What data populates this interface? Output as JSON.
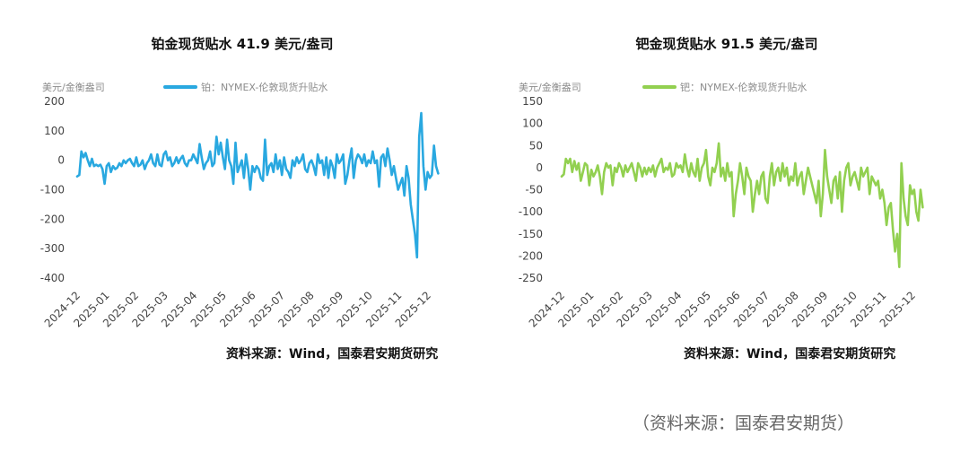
{
  "chart_data": [
    {
      "type": "line",
      "title": "铂金现货贴水 41.9 美元/盎司",
      "ylabel": "美元/金衡盎司",
      "ylim": [
        -400,
        200
      ],
      "yticks": [
        200,
        100,
        0,
        -100,
        -200,
        -300,
        -400
      ],
      "xticks": [
        "2024-12",
        "2025-01",
        "2025-02",
        "2025-03",
        "2025-04",
        "2025-05",
        "2025-06",
        "2025-07",
        "2025-08",
        "2025-09",
        "2025-10",
        "2025-11",
        "2025-12"
      ],
      "x_start": "2024-12",
      "x_end_index": 12.4,
      "color": "#29a8e0",
      "series": [
        {
          "name": "铂：NYMEX-伦敦现货升贴水",
          "values": [
            -55,
            -50,
            30,
            10,
            25,
            0,
            -20,
            5,
            -20,
            -15,
            -20,
            -15,
            -30,
            -80,
            -20,
            -10,
            -40,
            -20,
            -30,
            -25,
            -10,
            -20,
            0,
            -10,
            0,
            5,
            -10,
            -20,
            10,
            -20,
            -15,
            0,
            -30,
            -10,
            0,
            20,
            -10,
            -20,
            20,
            -15,
            -20,
            20,
            30,
            0,
            10,
            -20,
            -10,
            10,
            -10,
            5,
            15,
            -10,
            -20,
            0,
            0,
            20,
            5,
            -10,
            55,
            10,
            -30,
            -10,
            0,
            30,
            -20,
            -10,
            80,
            20,
            60,
            10,
            -30,
            70,
            0,
            -20,
            -80,
            60,
            -40,
            -20,
            0,
            -60,
            20,
            -30,
            -100,
            -20,
            -40,
            -20,
            -30,
            -60,
            -70,
            70,
            -50,
            -20,
            -10,
            -40,
            20,
            -30,
            0,
            -50,
            10,
            -30,
            -40,
            -60,
            0,
            -20,
            10,
            -10,
            0,
            20,
            -30,
            -40,
            -10,
            0,
            -20,
            -50,
            20,
            -10,
            0,
            -50,
            10,
            -60,
            0,
            -20,
            -60,
            20,
            -10,
            0,
            20,
            -80,
            -50,
            0,
            40,
            -60,
            0,
            20,
            10,
            -10,
            20,
            -20,
            0,
            -10,
            30,
            -10,
            0,
            -90,
            10,
            20,
            -20,
            40,
            0,
            -50,
            -20,
            -60,
            -100,
            -80,
            -60,
            -120,
            -20,
            -60,
            -150,
            -200,
            -250,
            -330,
            80,
            160,
            -20,
            -100,
            -40,
            -60,
            -50,
            50,
            -20,
            -45
          ]
        }
      ]
    },
    {
      "type": "line",
      "title": "钯金现货贴水 91.5 美元/盎司",
      "ylabel": "美元/金衡盎司",
      "ylim": [
        -250,
        150
      ],
      "yticks": [
        150,
        100,
        50,
        0,
        -50,
        -100,
        -150,
        -200,
        -250
      ],
      "xticks": [
        "2024-12",
        "2025-01",
        "2025-02",
        "2025-03",
        "2025-04",
        "2025-05",
        "2025-06",
        "2025-07",
        "2025-08",
        "2025-09",
        "2025-10",
        "2025-11",
        "2025-12"
      ],
      "x_start": "2024-12",
      "x_end_index": 12.4,
      "color": "#92d050",
      "series": [
        {
          "name": "钯：NYMEX-伦敦现货升贴水",
          "values": [
            -20,
            -15,
            20,
            10,
            20,
            -10,
            15,
            -5,
            10,
            -30,
            -10,
            10,
            5,
            -40,
            -5,
            -20,
            -10,
            5,
            -20,
            -60,
            -10,
            10,
            0,
            5,
            -40,
            0,
            -10,
            10,
            0,
            -20,
            5,
            -10,
            0,
            10,
            -10,
            -30,
            10,
            0,
            -20,
            0,
            -15,
            0,
            -10,
            5,
            -20,
            0,
            10,
            20,
            -10,
            0,
            -5,
            10,
            -20,
            -15,
            10,
            0,
            5,
            -10,
            30,
            0,
            -20,
            10,
            -10,
            -20,
            20,
            -30,
            0,
            10,
            40,
            -20,
            -40,
            0,
            -10,
            10,
            55,
            -20,
            0,
            -30,
            10,
            -20,
            -10,
            -110,
            -60,
            -30,
            10,
            -20,
            -60,
            0,
            -20,
            -30,
            -100,
            -60,
            -30,
            -60,
            -20,
            -10,
            -70,
            -80,
            -20,
            10,
            -40,
            -10,
            0,
            -30,
            10,
            -20,
            0,
            -40,
            -20,
            -30,
            10,
            -40,
            -20,
            -10,
            -60,
            -30,
            0,
            -20,
            -40,
            -60,
            -80,
            -30,
            -110,
            -60,
            40,
            -20,
            -50,
            -80,
            -30,
            -20,
            -70,
            -10,
            -100,
            -30,
            0,
            10,
            -40,
            -20,
            -10,
            -30,
            -50,
            0,
            -20,
            -10,
            0,
            -60,
            -20,
            -30,
            -40,
            -30,
            -70,
            -50,
            -80,
            -130,
            -90,
            -80,
            -140,
            -190,
            -150,
            -225,
            10,
            -70,
            -110,
            -130,
            -40,
            -60,
            -50,
            -100,
            -120,
            -50,
            -90
          ]
        }
      ]
    }
  ],
  "panels": [
    {
      "title": "铂金现货贴水 41.9 美元/盎司",
      "unit": "美元/金衡盎司",
      "legend": "铂：NYMEX-伦敦现货升贴水",
      "source": "资料来源：Wind，国泰君安期货研究"
    },
    {
      "title": "钯金现货贴水 91.5 美元/盎司",
      "unit": "美元/金衡盎司",
      "legend": "钯：NYMEX-伦敦现货升贴水",
      "source": "资料来源：Wind，国泰君安期货研究"
    }
  ],
  "footer": {
    "source": "（资料来源：国泰君安期货）"
  }
}
